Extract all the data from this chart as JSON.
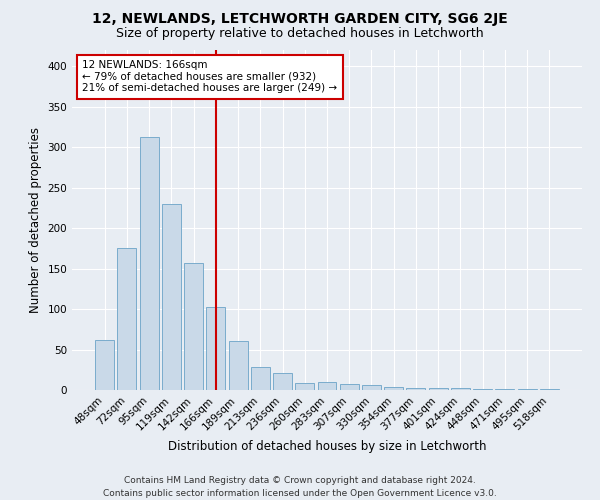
{
  "title": "12, NEWLANDS, LETCHWORTH GARDEN CITY, SG6 2JE",
  "subtitle": "Size of property relative to detached houses in Letchworth",
  "xlabel": "Distribution of detached houses by size in Letchworth",
  "ylabel": "Number of detached properties",
  "categories": [
    "48sqm",
    "72sqm",
    "95sqm",
    "119sqm",
    "142sqm",
    "166sqm",
    "189sqm",
    "213sqm",
    "236sqm",
    "260sqm",
    "283sqm",
    "307sqm",
    "330sqm",
    "354sqm",
    "377sqm",
    "401sqm",
    "424sqm",
    "448sqm",
    "471sqm",
    "495sqm",
    "518sqm"
  ],
  "values": [
    62,
    175,
    313,
    230,
    157,
    103,
    61,
    28,
    21,
    9,
    10,
    7,
    6,
    4,
    3,
    2,
    2,
    1,
    1,
    1,
    1
  ],
  "bar_color": "#c9d9e8",
  "bar_edge_color": "#7aaccc",
  "highlight_index": 5,
  "highlight_line_color": "#cc0000",
  "annotation_text": "12 NEWLANDS: 166sqm\n← 79% of detached houses are smaller (932)\n21% of semi-detached houses are larger (249) →",
  "annotation_box_color": "#ffffff",
  "annotation_box_edge_color": "#cc0000",
  "ylim": [
    0,
    420
  ],
  "yticks": [
    0,
    50,
    100,
    150,
    200,
    250,
    300,
    350,
    400
  ],
  "background_color": "#e8edf3",
  "plot_background_color": "#e8edf3",
  "footer": "Contains HM Land Registry data © Crown copyright and database right 2024.\nContains public sector information licensed under the Open Government Licence v3.0.",
  "title_fontsize": 10,
  "subtitle_fontsize": 9,
  "xlabel_fontsize": 8.5,
  "ylabel_fontsize": 8.5,
  "tick_fontsize": 7.5,
  "footer_fontsize": 6.5
}
